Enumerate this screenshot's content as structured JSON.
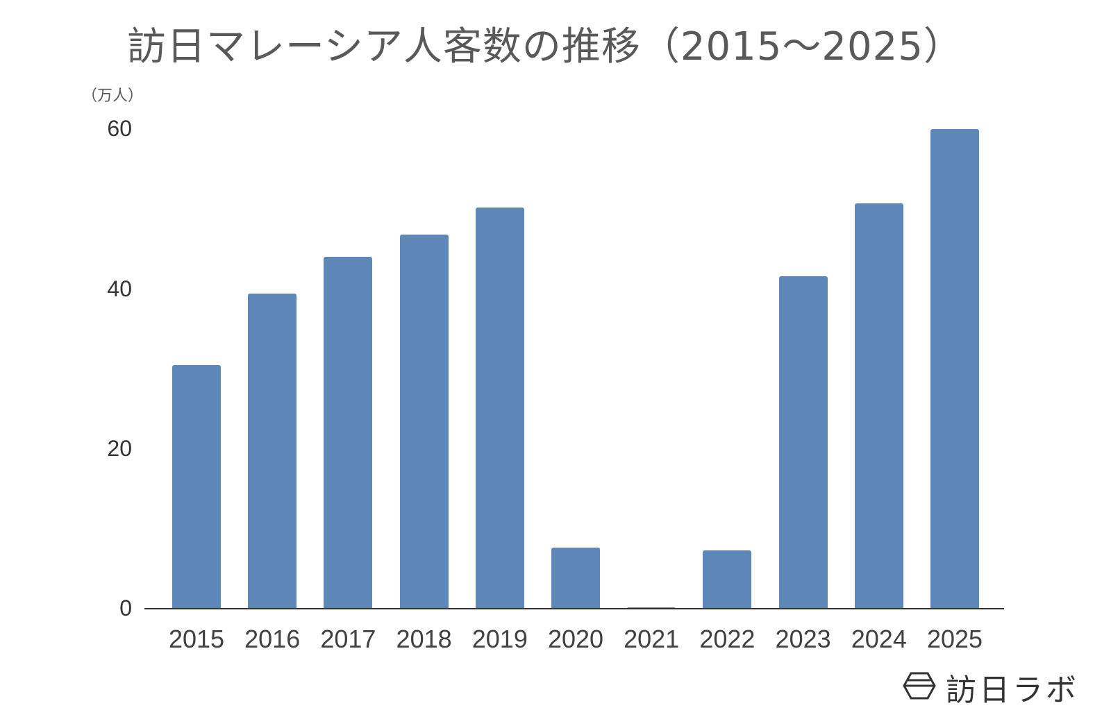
{
  "title": "訪日マレーシア人客数の推移（2015〜2025）",
  "unit_label": "（万人）",
  "brand": {
    "name": "訪日ラボ",
    "icon": "hexagon-logo-icon"
  },
  "y_ticks": [
    "0",
    "20",
    "40",
    "60"
  ],
  "bar_color": "#5e86b8",
  "chart_data": {
    "type": "bar",
    "title": "訪日マレーシア人客数の推移（2015〜2025）",
    "xlabel": "",
    "ylabel": "（万人）",
    "ylim": [
      0,
      60
    ],
    "grid": false,
    "legend": null,
    "categories": [
      "2015",
      "2016",
      "2017",
      "2018",
      "2019",
      "2020",
      "2021",
      "2022",
      "2023",
      "2024",
      "2025"
    ],
    "values": [
      30.5,
      39.4,
      44.0,
      46.8,
      50.2,
      7.6,
      0.2,
      7.3,
      41.6,
      50.7,
      60.0
    ]
  }
}
